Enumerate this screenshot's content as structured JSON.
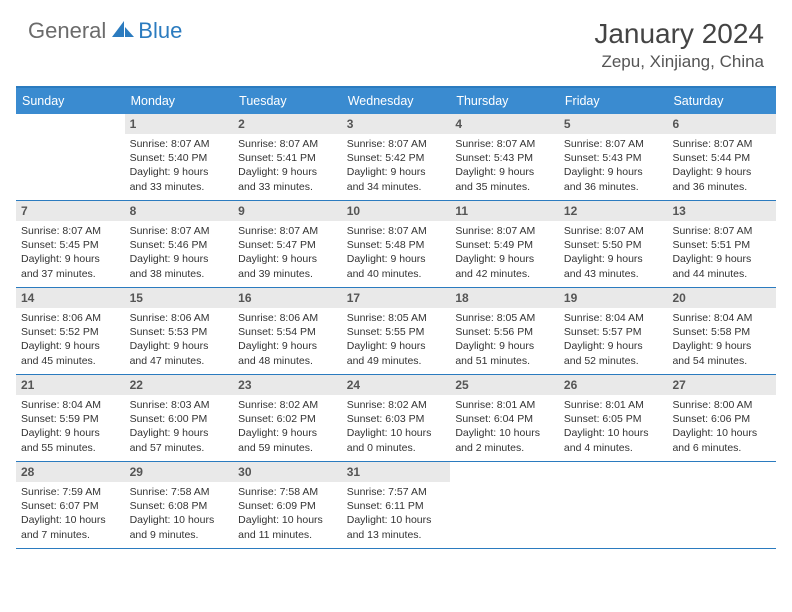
{
  "logo": {
    "general": "General",
    "blue": "Blue"
  },
  "title": "January 2024",
  "location": "Zepu, Xinjiang, China",
  "colors": {
    "header_bg": "#3a8bd0",
    "header_text": "#ffffff",
    "border": "#2b7bbf",
    "daynum_bg": "#e9e9e9",
    "daynum_text": "#555555",
    "body_text": "#333333",
    "logo_gray": "#6b6b6b",
    "logo_blue": "#2b7bbf"
  },
  "dow": [
    "Sunday",
    "Monday",
    "Tuesday",
    "Wednesday",
    "Thursday",
    "Friday",
    "Saturday"
  ],
  "weeks": [
    [
      null,
      {
        "n": "1",
        "sr": "8:07 AM",
        "ss": "5:40 PM",
        "dl": "9 hours and 33 minutes."
      },
      {
        "n": "2",
        "sr": "8:07 AM",
        "ss": "5:41 PM",
        "dl": "9 hours and 33 minutes."
      },
      {
        "n": "3",
        "sr": "8:07 AM",
        "ss": "5:42 PM",
        "dl": "9 hours and 34 minutes."
      },
      {
        "n": "4",
        "sr": "8:07 AM",
        "ss": "5:43 PM",
        "dl": "9 hours and 35 minutes."
      },
      {
        "n": "5",
        "sr": "8:07 AM",
        "ss": "5:43 PM",
        "dl": "9 hours and 36 minutes."
      },
      {
        "n": "6",
        "sr": "8:07 AM",
        "ss": "5:44 PM",
        "dl": "9 hours and 36 minutes."
      }
    ],
    [
      {
        "n": "7",
        "sr": "8:07 AM",
        "ss": "5:45 PM",
        "dl": "9 hours and 37 minutes."
      },
      {
        "n": "8",
        "sr": "8:07 AM",
        "ss": "5:46 PM",
        "dl": "9 hours and 38 minutes."
      },
      {
        "n": "9",
        "sr": "8:07 AM",
        "ss": "5:47 PM",
        "dl": "9 hours and 39 minutes."
      },
      {
        "n": "10",
        "sr": "8:07 AM",
        "ss": "5:48 PM",
        "dl": "9 hours and 40 minutes."
      },
      {
        "n": "11",
        "sr": "8:07 AM",
        "ss": "5:49 PM",
        "dl": "9 hours and 42 minutes."
      },
      {
        "n": "12",
        "sr": "8:07 AM",
        "ss": "5:50 PM",
        "dl": "9 hours and 43 minutes."
      },
      {
        "n": "13",
        "sr": "8:07 AM",
        "ss": "5:51 PM",
        "dl": "9 hours and 44 minutes."
      }
    ],
    [
      {
        "n": "14",
        "sr": "8:06 AM",
        "ss": "5:52 PM",
        "dl": "9 hours and 45 minutes."
      },
      {
        "n": "15",
        "sr": "8:06 AM",
        "ss": "5:53 PM",
        "dl": "9 hours and 47 minutes."
      },
      {
        "n": "16",
        "sr": "8:06 AM",
        "ss": "5:54 PM",
        "dl": "9 hours and 48 minutes."
      },
      {
        "n": "17",
        "sr": "8:05 AM",
        "ss": "5:55 PM",
        "dl": "9 hours and 49 minutes."
      },
      {
        "n": "18",
        "sr": "8:05 AM",
        "ss": "5:56 PM",
        "dl": "9 hours and 51 minutes."
      },
      {
        "n": "19",
        "sr": "8:04 AM",
        "ss": "5:57 PM",
        "dl": "9 hours and 52 minutes."
      },
      {
        "n": "20",
        "sr": "8:04 AM",
        "ss": "5:58 PM",
        "dl": "9 hours and 54 minutes."
      }
    ],
    [
      {
        "n": "21",
        "sr": "8:04 AM",
        "ss": "5:59 PM",
        "dl": "9 hours and 55 minutes."
      },
      {
        "n": "22",
        "sr": "8:03 AM",
        "ss": "6:00 PM",
        "dl": "9 hours and 57 minutes."
      },
      {
        "n": "23",
        "sr": "8:02 AM",
        "ss": "6:02 PM",
        "dl": "9 hours and 59 minutes."
      },
      {
        "n": "24",
        "sr": "8:02 AM",
        "ss": "6:03 PM",
        "dl": "10 hours and 0 minutes."
      },
      {
        "n": "25",
        "sr": "8:01 AM",
        "ss": "6:04 PM",
        "dl": "10 hours and 2 minutes."
      },
      {
        "n": "26",
        "sr": "8:01 AM",
        "ss": "6:05 PM",
        "dl": "10 hours and 4 minutes."
      },
      {
        "n": "27",
        "sr": "8:00 AM",
        "ss": "6:06 PM",
        "dl": "10 hours and 6 minutes."
      }
    ],
    [
      {
        "n": "28",
        "sr": "7:59 AM",
        "ss": "6:07 PM",
        "dl": "10 hours and 7 minutes."
      },
      {
        "n": "29",
        "sr": "7:58 AM",
        "ss": "6:08 PM",
        "dl": "10 hours and 9 minutes."
      },
      {
        "n": "30",
        "sr": "7:58 AM",
        "ss": "6:09 PM",
        "dl": "10 hours and 11 minutes."
      },
      {
        "n": "31",
        "sr": "7:57 AM",
        "ss": "6:11 PM",
        "dl": "10 hours and 13 minutes."
      },
      null,
      null,
      null
    ]
  ],
  "labels": {
    "sunrise": "Sunrise:",
    "sunset": "Sunset:",
    "daylight": "Daylight:"
  }
}
